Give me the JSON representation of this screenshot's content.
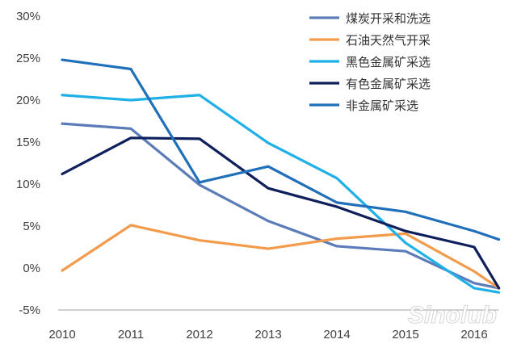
{
  "chart_data": {
    "type": "line",
    "title": "",
    "xlabel": "",
    "ylabel": "",
    "x_tick_labels": [
      "2010",
      "2011",
      "2012",
      "2013",
      "2014",
      "2015",
      "2016"
    ],
    "x": [
      2010,
      2011,
      2012,
      2013,
      2014,
      2015,
      2016,
      2016.36
    ],
    "y_tick_labels": [
      "30%",
      "25%",
      "20%",
      "15%",
      "10%",
      "5%",
      "0%",
      "-5%"
    ],
    "y_ticks": [
      30,
      25,
      20,
      15,
      10,
      5,
      0,
      -5
    ],
    "ylim": [
      -5,
      30
    ],
    "grid": false,
    "legend_position": "top-right",
    "series": [
      {
        "name": "煤炭开采和洗选",
        "color": "#5b7cb9",
        "values": [
          17.2,
          16.6,
          9.9,
          5.6,
          2.6,
          2.0,
          -1.8,
          -2.4
        ]
      },
      {
        "name": "石油天然气开采",
        "color": "#f39b4c",
        "values": [
          -0.3,
          5.1,
          3.3,
          2.3,
          3.5,
          4.1,
          -0.4,
          -2.4
        ]
      },
      {
        "name": "黑色金属矿采选",
        "color": "#1eb0e6",
        "values": [
          20.6,
          20.0,
          20.6,
          14.9,
          10.7,
          3.0,
          -2.4,
          -2.9
        ]
      },
      {
        "name": "有色金属矿采选",
        "color": "#0f1f5c",
        "values": [
          11.2,
          15.5,
          15.4,
          9.5,
          7.3,
          4.4,
          2.5,
          -2.4
        ]
      },
      {
        "name": "非金属矿采选",
        "color": "#1f6fba",
        "values": [
          24.8,
          23.7,
          10.2,
          12.1,
          7.8,
          6.7,
          4.4,
          3.4
        ]
      }
    ]
  },
  "watermark": "Sinolub.com 润滑油"
}
